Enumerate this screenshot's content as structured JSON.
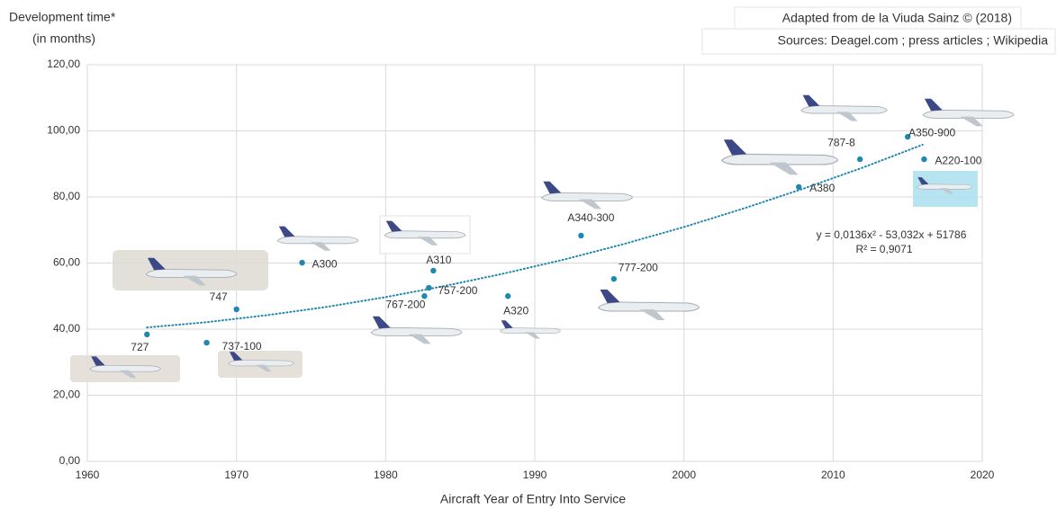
{
  "chart_data": {
    "type": "scatter",
    "y_label_line1": "Development time*",
    "y_label_line2": "(in months)",
    "x_label": "Aircraft Year of Entry Into Service",
    "credit": "Adapted from de la Viuda Sainz © (2018)",
    "sources": "Sources: Deagel.com ; press articles ; Wikipedia",
    "color": "#1f87b0",
    "grid": true,
    "xlim": [
      1960,
      2020
    ],
    "xticks": [
      1960,
      1970,
      1980,
      1990,
      2000,
      2010,
      2020
    ],
    "ylim": [
      0,
      120
    ],
    "yticks": [
      {
        "value": 0,
        "label": "0,00"
      },
      {
        "value": 20,
        "label": "20,00"
      },
      {
        "value": 40,
        "label": "40,00"
      },
      {
        "value": 60,
        "label": "60,00"
      },
      {
        "value": 80,
        "label": "80,00"
      },
      {
        "value": 100,
        "label": "100,00"
      },
      {
        "value": 120,
        "label": "120,00"
      }
    ],
    "categories": [
      "727",
      "737-100",
      "747",
      "A300",
      "767-200",
      "757-200",
      "A310",
      "A320",
      "A340-300",
      "777-200",
      "A380",
      "787-8",
      "A350-900",
      "A220-100"
    ],
    "x": [
      1964.0,
      1968.0,
      1970.0,
      1974.4,
      1982.6,
      1982.9,
      1983.2,
      1988.2,
      1993.1,
      1995.3,
      2007.7,
      2011.8,
      2015.0,
      2016.1
    ],
    "values": [
      38.4,
      35.9,
      46,
      60.1,
      50,
      52.5,
      57.7,
      50,
      68.3,
      55.2,
      83,
      91.4,
      98.2,
      91.4
    ],
    "trendline": {
      "equation": "y = 0,0136x² - 53,032x + 51786",
      "r2": "R² = 0,9071",
      "x": [
        1964,
        1968,
        1972,
        1976,
        1980,
        1984,
        1988,
        1992,
        1996,
        2000,
        2004,
        2008,
        2012,
        2016
      ],
      "values": [
        40.5,
        42.1,
        44.2,
        46.7,
        49.7,
        53.1,
        56.9,
        61.1,
        65.8,
        70.9,
        76.5,
        82.5,
        88.9,
        95.8
      ]
    }
  }
}
